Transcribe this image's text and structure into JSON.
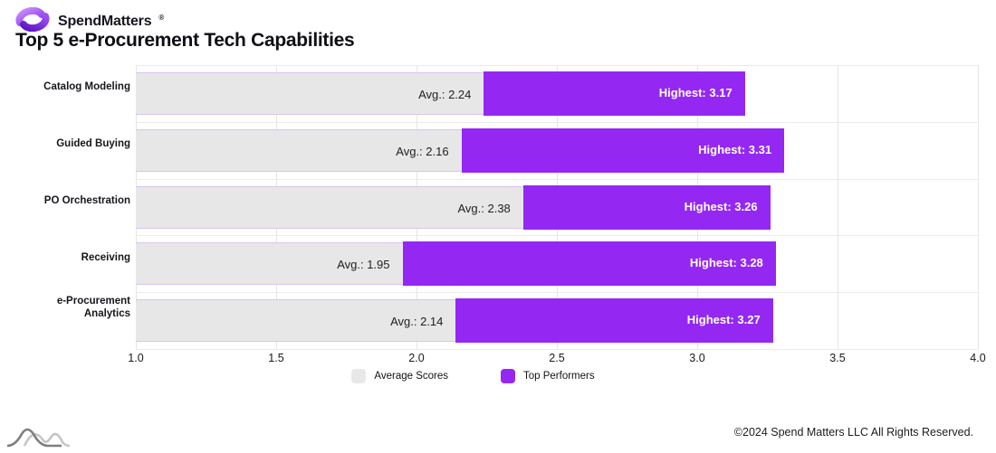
{
  "brand": {
    "name": "SpendMatters",
    "registered": "®"
  },
  "title": "Top 5 e-Procurement Tech Capabilities",
  "chart_data": {
    "type": "bar",
    "orientation": "horizontal",
    "title": "Top 5 e-Procurement Tech Capabilities",
    "categories": [
      "Catalog Modeling",
      "Guided Buying",
      "PO Orchestration",
      "Receiving",
      "e-Procurement Analytics"
    ],
    "series": [
      {
        "name": "Average Scores",
        "label_prefix": "Avg.: ",
        "color": "#e7e7e7",
        "values": [
          2.24,
          2.16,
          2.38,
          1.95,
          2.14
        ]
      },
      {
        "name": "Top Performers",
        "label_prefix": "Highest: ",
        "color": "#9428f2",
        "values": [
          3.17,
          3.31,
          3.26,
          3.28,
          3.27
        ]
      }
    ],
    "xlim": [
      1.0,
      4.0
    ],
    "x_ticks": [
      "1.0",
      "1.5",
      "2.0",
      "2.5",
      "3.0",
      "3.5",
      "4.0"
    ],
    "grid": true,
    "legend_position": "bottom",
    "legend": [
      {
        "label": "Average Scores",
        "color": "#e8e8e8"
      },
      {
        "label": "Top Performers",
        "color": "#9428f2"
      }
    ]
  },
  "footer": {
    "copyright": "©2024 Spend Matters LLC All Rights Reserved."
  },
  "colors": {
    "accent_purple": "#9428f2",
    "avg_gray": "#e7e7e7",
    "bar_border": "#d9c4f0",
    "gridline": "#e5e5e5"
  },
  "icons": {
    "brand_logo": "purple-swoosh-icon",
    "footer_logo": "gray-wave-curves-icon"
  }
}
